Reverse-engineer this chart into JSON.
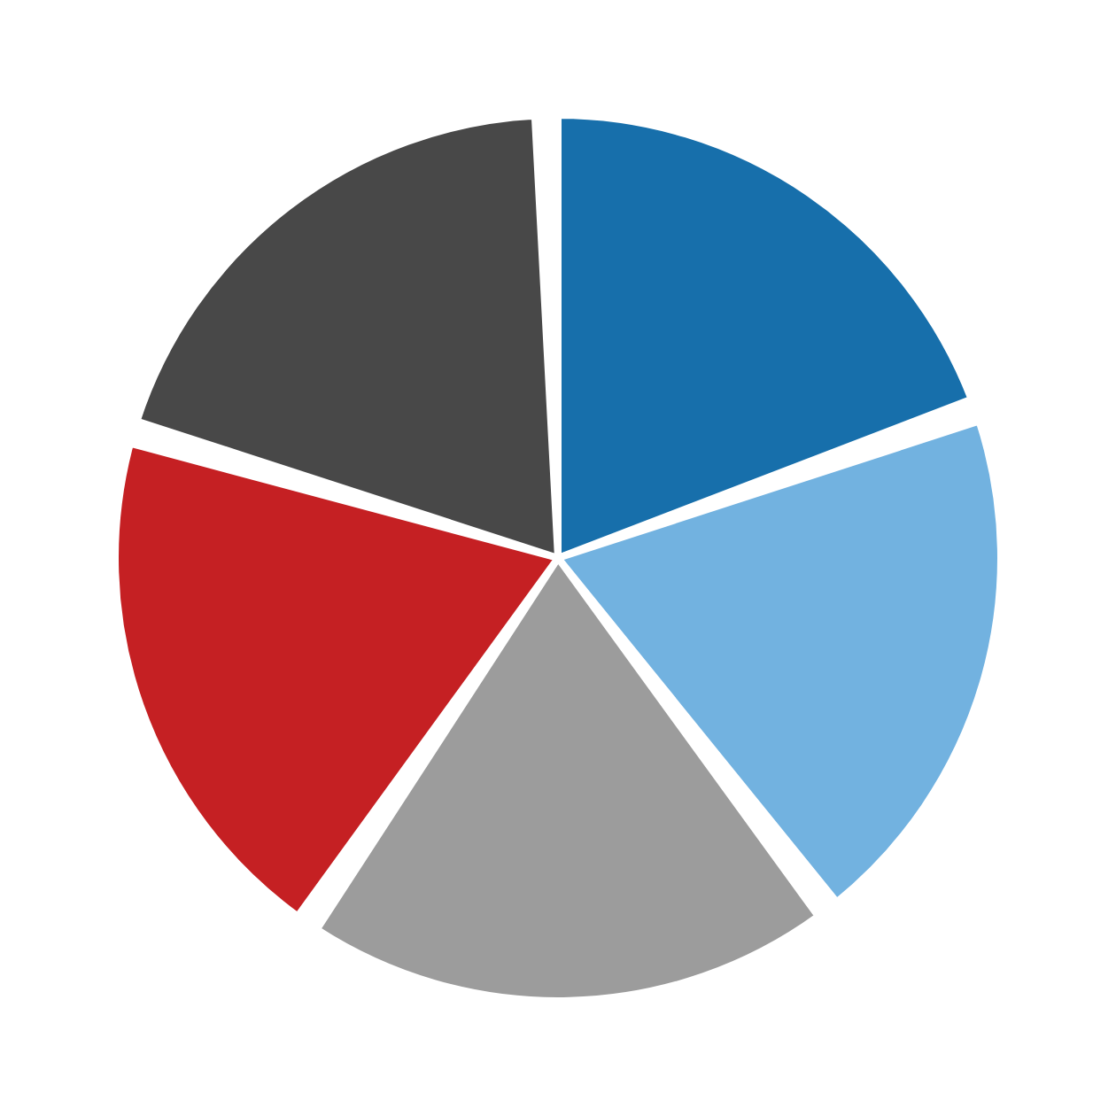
{
  "chart_data": {
    "type": "pie",
    "categories": [
      null,
      null,
      null,
      null,
      null
    ],
    "values": [
      20,
      20,
      20,
      20,
      20
    ],
    "colors": [
      "#176fab",
      "#72b2e0",
      "#9c9c9c",
      "#c52023",
      "#484848"
    ]
  }
}
